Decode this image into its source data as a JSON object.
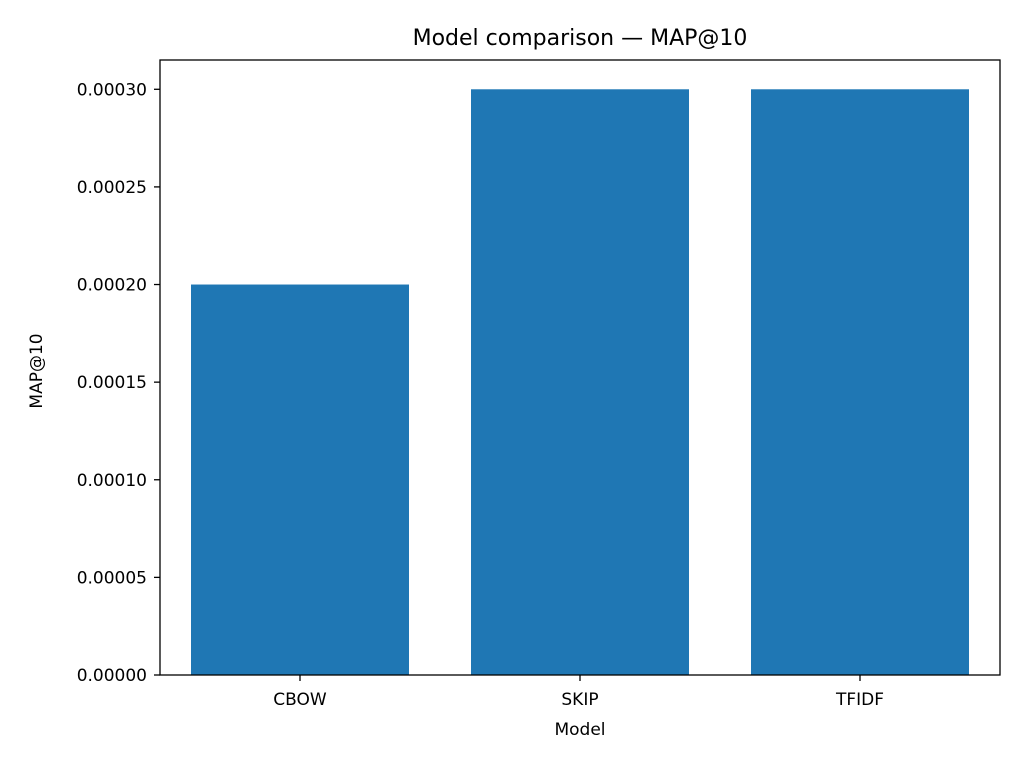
{
  "chart_data": {
    "type": "bar",
    "title": "Model comparison — MAP@10",
    "xlabel": "Model",
    "ylabel": "MAP@10",
    "categories": [
      "CBOW",
      "SKIP",
      "TFIDF"
    ],
    "values": [
      0.0002,
      0.0003,
      0.0003
    ],
    "ylim": [
      0,
      0.000315
    ],
    "yticks": [
      0,
      5e-05,
      0.0001,
      0.00015,
      0.0002,
      0.00025,
      0.0003
    ],
    "ytick_labels": [
      "0.00000",
      "0.00005",
      "0.00010",
      "0.00015",
      "0.00020",
      "0.00025",
      "0.00030"
    ],
    "grid": false,
    "legend": "none",
    "bar_color": "#1f77b4"
  }
}
